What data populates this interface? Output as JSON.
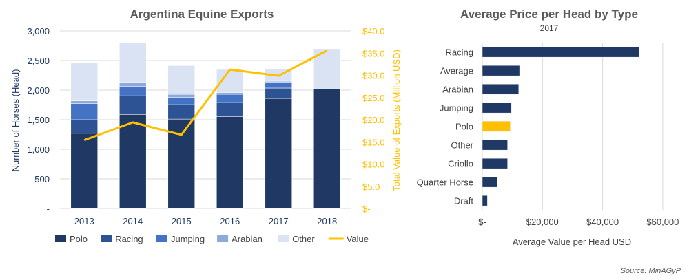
{
  "chart_data": [
    {
      "type": "bar",
      "stacked": true,
      "title": "Argentina Equine Exports",
      "xlabel": "",
      "ylabel": "Number of Horses (Head)",
      "y2label": "Total Value of Exports (Million USD)",
      "ylim": [
        0,
        3000
      ],
      "y2lim": [
        0,
        40
      ],
      "yticks": [
        "-",
        "500",
        "1,000",
        "1,500",
        "2,000",
        "2,500",
        "3,000"
      ],
      "y2ticks": [
        "$-",
        "$5.0",
        "$10.0",
        "$15.0",
        "$20.0",
        "$25.0",
        "$30.0",
        "$35.0",
        "$40.0"
      ],
      "categories": [
        "2013",
        "2014",
        "2015",
        "2016",
        "2017",
        "2018"
      ],
      "series": [
        {
          "name": "Polo",
          "color": "#1f3864",
          "values": [
            1270,
            1590,
            1510,
            1550,
            1860,
            2020
          ]
        },
        {
          "name": "Racing",
          "color": "#2e5395",
          "values": [
            230,
            315,
            245,
            240,
            175,
            0
          ]
        },
        {
          "name": "Jumping",
          "color": "#4472c4",
          "values": [
            275,
            155,
            125,
            140,
            95,
            0
          ]
        },
        {
          "name": "Arabian",
          "color": "#8eaadb",
          "values": [
            45,
            75,
            50,
            30,
            20,
            0
          ]
        },
        {
          "name": "Other",
          "color": "#dae3f3",
          "values": [
            640,
            670,
            485,
            390,
            215,
            680
          ]
        },
        {
          "name": "Value",
          "color": "#ffc000",
          "type": "line",
          "axis": "right",
          "values": [
            15.4,
            19.4,
            16.6,
            31.3,
            29.9,
            35.6
          ]
        }
      ],
      "legend": "bottom",
      "grid": true
    },
    {
      "type": "bar",
      "orientation": "horizontal",
      "title": "Average Price per Head by Type",
      "subtitle": "2017",
      "xlabel": "Average Value per Head USD",
      "ylabel": "",
      "xlim": [
        0,
        60000
      ],
      "xticks": [
        "$-",
        "$20,000",
        "$40,000",
        "$60,000"
      ],
      "categories": [
        "Racing",
        "Average",
        "Arabian",
        "Jumping",
        "Polo",
        "Other",
        "Criollo",
        "Quarter Horse",
        "Draft"
      ],
      "values": [
        52200,
        12400,
        12100,
        9700,
        9300,
        8400,
        8400,
        4900,
        1700
      ],
      "colors": {
        "default": "#1f3864",
        "highlight": "#ffc000"
      },
      "highlight": "Polo",
      "grid": true
    }
  ],
  "source": "Source: MinAGyP"
}
